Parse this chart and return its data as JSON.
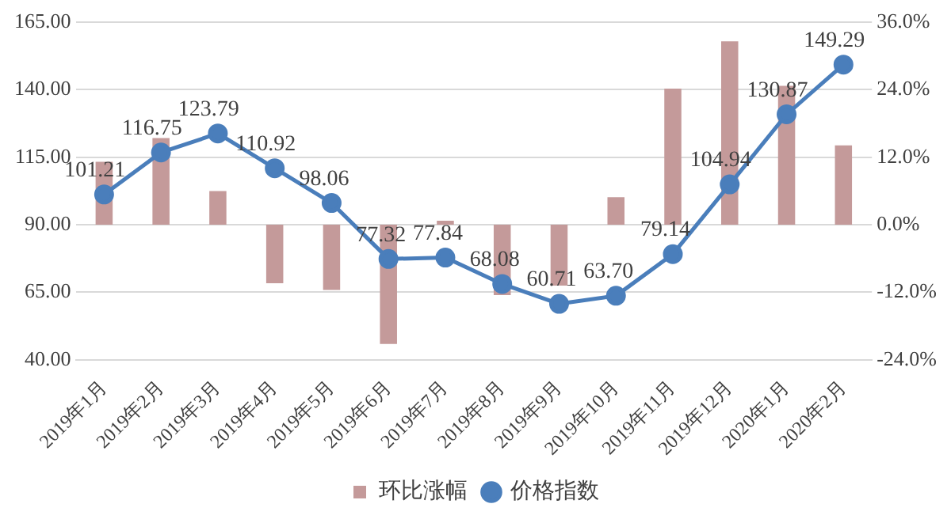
{
  "chart_data": {
    "type": "bar",
    "categories": [
      "2019年1月",
      "2019年2月",
      "2019年3月",
      "2019年4月",
      "2019年5月",
      "2019年6月",
      "2019年7月",
      "2019年8月",
      "2019年9月",
      "2019年10月",
      "2019年11月",
      "2019年12月",
      "2020年1月",
      "2020年2月"
    ],
    "series": [
      {
        "name": "环比涨幅",
        "axis": "y2",
        "color": "#c49a9a",
        "values": [
          11.2,
          15.4,
          6.0,
          -10.4,
          -11.6,
          -21.2,
          0.7,
          -12.5,
          -10.8,
          4.9,
          24.2,
          32.6,
          24.7,
          14.1
        ]
      },
      {
        "name": "价格指数",
        "type": "line",
        "axis": "y",
        "color": "#4a7ebb",
        "marker": "circle",
        "values": [
          101.21,
          116.75,
          123.79,
          110.92,
          98.06,
          77.32,
          77.84,
          68.08,
          60.71,
          63.7,
          79.14,
          104.94,
          130.87,
          149.29
        ],
        "value_labels": [
          "101.21",
          "116.75",
          "123.79",
          "110.92",
          "98.06",
          "77.32",
          "77.84",
          "68.08",
          "60.71",
          "63.70",
          "79.14",
          "104.94",
          "130.87",
          "149.29"
        ]
      }
    ],
    "ylim": [
      40,
      165
    ],
    "yticks": [
      {
        "value": 40,
        "label": "40.00"
      },
      {
        "value": 65,
        "label": "65.00"
      },
      {
        "value": 90,
        "label": "90.00"
      },
      {
        "value": 115,
        "label": "115.00"
      },
      {
        "value": 140,
        "label": "140.00"
      },
      {
        "value": 165,
        "label": "165.00"
      }
    ],
    "y2lim": [
      -24,
      36
    ],
    "y2ticks": [
      {
        "value": -24,
        "label": "-24.0%"
      },
      {
        "value": -12,
        "label": "-12.0%"
      },
      {
        "value": 0,
        "label": "0.0%"
      },
      {
        "value": 12,
        "label": "12.0%"
      },
      {
        "value": 24,
        "label": "24.0%"
      },
      {
        "value": 36,
        "label": "36.0%"
      }
    ],
    "grid": "y",
    "legend": "bottom"
  }
}
